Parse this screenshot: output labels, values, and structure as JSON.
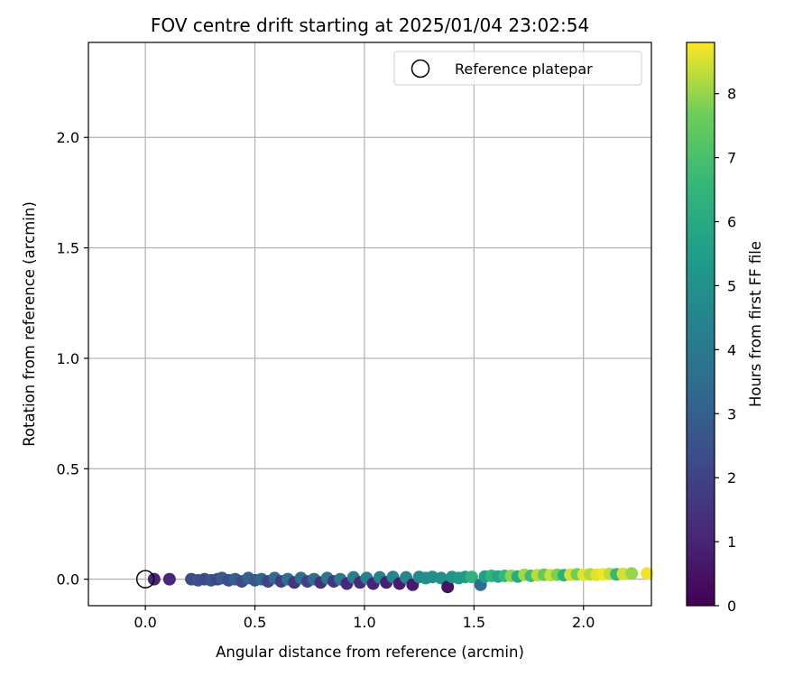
{
  "chart_data": {
    "type": "scatter",
    "title": "FOV centre drift starting at 2025/01/04 23:02:54",
    "xlabel": "Angular distance from reference (arcmin)",
    "ylabel": "Rotation from reference (arcmin)",
    "colorbar_label": "Hours from first FF file",
    "colormap": "viridis",
    "xlim": [
      -0.26,
      2.31
    ],
    "ylim": [
      -0.12,
      2.43
    ],
    "clim": [
      0,
      8.8
    ],
    "x_ticks": [
      "0.0",
      "0.5",
      "1.0",
      "1.5",
      "2.0"
    ],
    "x_tick_values": [
      0,
      0.5,
      1.0,
      1.5,
      2.0
    ],
    "y_ticks": [
      "0.0",
      "0.5",
      "1.0",
      "1.5",
      "2.0"
    ],
    "y_tick_values": [
      0,
      0.5,
      1.0,
      1.5,
      2.0
    ],
    "colorbar_ticks": [
      "0",
      "1",
      "2",
      "3",
      "4",
      "5",
      "6",
      "7",
      "8"
    ],
    "colorbar_tick_values": [
      0,
      1,
      2,
      3,
      4,
      5,
      6,
      7,
      8
    ],
    "grid": true,
    "legend": {
      "placement": "top-right",
      "label": "Reference platepar"
    },
    "reference_point": {
      "x": 0.0,
      "y": 0.0
    },
    "points": [
      {
        "x": 0.04,
        "y": 0.0,
        "h": 1.0
      },
      {
        "x": 0.11,
        "y": 0.0,
        "h": 1.1
      },
      {
        "x": 0.21,
        "y": 0.0,
        "h": 2.3
      },
      {
        "x": 0.24,
        "y": -0.005,
        "h": 2.5
      },
      {
        "x": 0.27,
        "y": 0.0,
        "h": 2.2
      },
      {
        "x": 0.3,
        "y": -0.005,
        "h": 2.6
      },
      {
        "x": 0.33,
        "y": 0.0,
        "h": 2.1
      },
      {
        "x": 0.35,
        "y": 0.005,
        "h": 2.8
      },
      {
        "x": 0.38,
        "y": -0.005,
        "h": 2.4
      },
      {
        "x": 0.41,
        "y": 0.0,
        "h": 3.0
      },
      {
        "x": 0.44,
        "y": -0.01,
        "h": 2.2
      },
      {
        "x": 0.47,
        "y": 0.005,
        "h": 3.1
      },
      {
        "x": 0.5,
        "y": -0.005,
        "h": 2.7
      },
      {
        "x": 0.53,
        "y": 0.0,
        "h": 3.3
      },
      {
        "x": 0.56,
        "y": -0.01,
        "h": 2.0
      },
      {
        "x": 0.59,
        "y": 0.005,
        "h": 3.4
      },
      {
        "x": 0.62,
        "y": -0.01,
        "h": 1.8
      },
      {
        "x": 0.65,
        "y": 0.0,
        "h": 3.6
      },
      {
        "x": 0.68,
        "y": -0.015,
        "h": 1.5
      },
      {
        "x": 0.71,
        "y": 0.005,
        "h": 3.7
      },
      {
        "x": 0.74,
        "y": -0.01,
        "h": 2.0
      },
      {
        "x": 0.77,
        "y": 0.0,
        "h": 3.5
      },
      {
        "x": 0.8,
        "y": -0.015,
        "h": 1.4
      },
      {
        "x": 0.83,
        "y": 0.005,
        "h": 3.9
      },
      {
        "x": 0.86,
        "y": -0.01,
        "h": 1.6
      },
      {
        "x": 0.89,
        "y": 0.0,
        "h": 4.0
      },
      {
        "x": 0.92,
        "y": -0.02,
        "h": 1.2
      },
      {
        "x": 0.95,
        "y": 0.008,
        "h": 4.2
      },
      {
        "x": 0.98,
        "y": -0.015,
        "h": 1.3
      },
      {
        "x": 1.01,
        "y": 0.005,
        "h": 4.3
      },
      {
        "x": 1.04,
        "y": -0.02,
        "h": 1.0
      },
      {
        "x": 1.07,
        "y": 0.008,
        "h": 4.4
      },
      {
        "x": 1.1,
        "y": -0.015,
        "h": 0.9
      },
      {
        "x": 1.13,
        "y": 0.01,
        "h": 4.5
      },
      {
        "x": 1.16,
        "y": -0.02,
        "h": 0.8
      },
      {
        "x": 1.19,
        "y": 0.008,
        "h": 4.6
      },
      {
        "x": 1.22,
        "y": -0.025,
        "h": 0.7
      },
      {
        "x": 1.25,
        "y": 0.01,
        "h": 4.7
      },
      {
        "x": 1.28,
        "y": 0.005,
        "h": 4.8
      },
      {
        "x": 1.31,
        "y": 0.01,
        "h": 4.9
      },
      {
        "x": 1.35,
        "y": 0.005,
        "h": 5.0
      },
      {
        "x": 1.38,
        "y": -0.035,
        "h": 0.5
      },
      {
        "x": 1.4,
        "y": 0.01,
        "h": 5.1
      },
      {
        "x": 1.43,
        "y": 0.005,
        "h": 5.3
      },
      {
        "x": 1.46,
        "y": 0.01,
        "h": 5.4
      },
      {
        "x": 1.49,
        "y": 0.01,
        "h": 6.4
      },
      {
        "x": 1.53,
        "y": -0.025,
        "h": 3.6
      },
      {
        "x": 1.55,
        "y": 0.012,
        "h": 5.6
      },
      {
        "x": 1.58,
        "y": 0.015,
        "h": 6.5
      },
      {
        "x": 1.61,
        "y": 0.012,
        "h": 5.8
      },
      {
        "x": 1.64,
        "y": 0.015,
        "h": 6.6
      },
      {
        "x": 1.67,
        "y": 0.015,
        "h": 7.9
      },
      {
        "x": 1.7,
        "y": 0.012,
        "h": 6.0
      },
      {
        "x": 1.73,
        "y": 0.02,
        "h": 8.1
      },
      {
        "x": 1.76,
        "y": 0.015,
        "h": 6.8
      },
      {
        "x": 1.79,
        "y": 0.018,
        "h": 8.3
      },
      {
        "x": 1.82,
        "y": 0.02,
        "h": 7.5
      },
      {
        "x": 1.85,
        "y": 0.018,
        "h": 8.4
      },
      {
        "x": 1.88,
        "y": 0.02,
        "h": 7.8
      },
      {
        "x": 1.91,
        "y": 0.018,
        "h": 6.2
      },
      {
        "x": 1.94,
        "y": 0.02,
        "h": 8.5
      },
      {
        "x": 1.97,
        "y": 0.022,
        "h": 7.7
      },
      {
        "x": 2.0,
        "y": 0.02,
        "h": 8.6
      },
      {
        "x": 2.03,
        "y": 0.022,
        "h": 8.2
      },
      {
        "x": 2.06,
        "y": 0.02,
        "h": 8.6
      },
      {
        "x": 2.09,
        "y": 0.022,
        "h": 8.7
      },
      {
        "x": 2.12,
        "y": 0.024,
        "h": 8.3
      },
      {
        "x": 2.15,
        "y": 0.022,
        "h": 6.6
      },
      {
        "x": 2.18,
        "y": 0.024,
        "h": 8.5
      },
      {
        "x": 2.22,
        "y": 0.026,
        "h": 8.0
      },
      {
        "x": 2.29,
        "y": 0.026,
        "h": 8.7
      }
    ]
  }
}
